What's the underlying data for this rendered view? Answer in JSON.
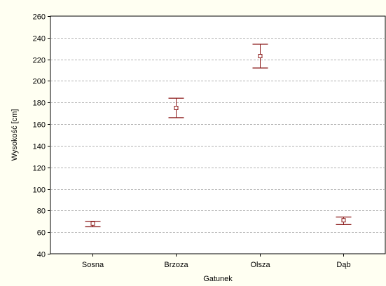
{
  "chart_data": {
    "type": "scatter",
    "categories": [
      "Sosna",
      "Brzoza",
      "Olsza",
      "Dąb"
    ],
    "series": [
      {
        "means": [
          68,
          175,
          223,
          71
        ],
        "lower": [
          65,
          166,
          212,
          67
        ],
        "upper": [
          70,
          184,
          234,
          74
        ]
      }
    ],
    "xlabel": "Gatunek",
    "ylabel": "Wysokość [cm]",
    "ylim": [
      40,
      260
    ],
    "yticks": [
      40,
      60,
      80,
      100,
      120,
      140,
      160,
      180,
      200,
      220,
      240,
      260
    ],
    "grid": true,
    "colors": {
      "marker": "#8b1a1a",
      "grid": "#b3b3b3",
      "plot_background": "#ffffff",
      "page_background": "#fffff2"
    }
  }
}
